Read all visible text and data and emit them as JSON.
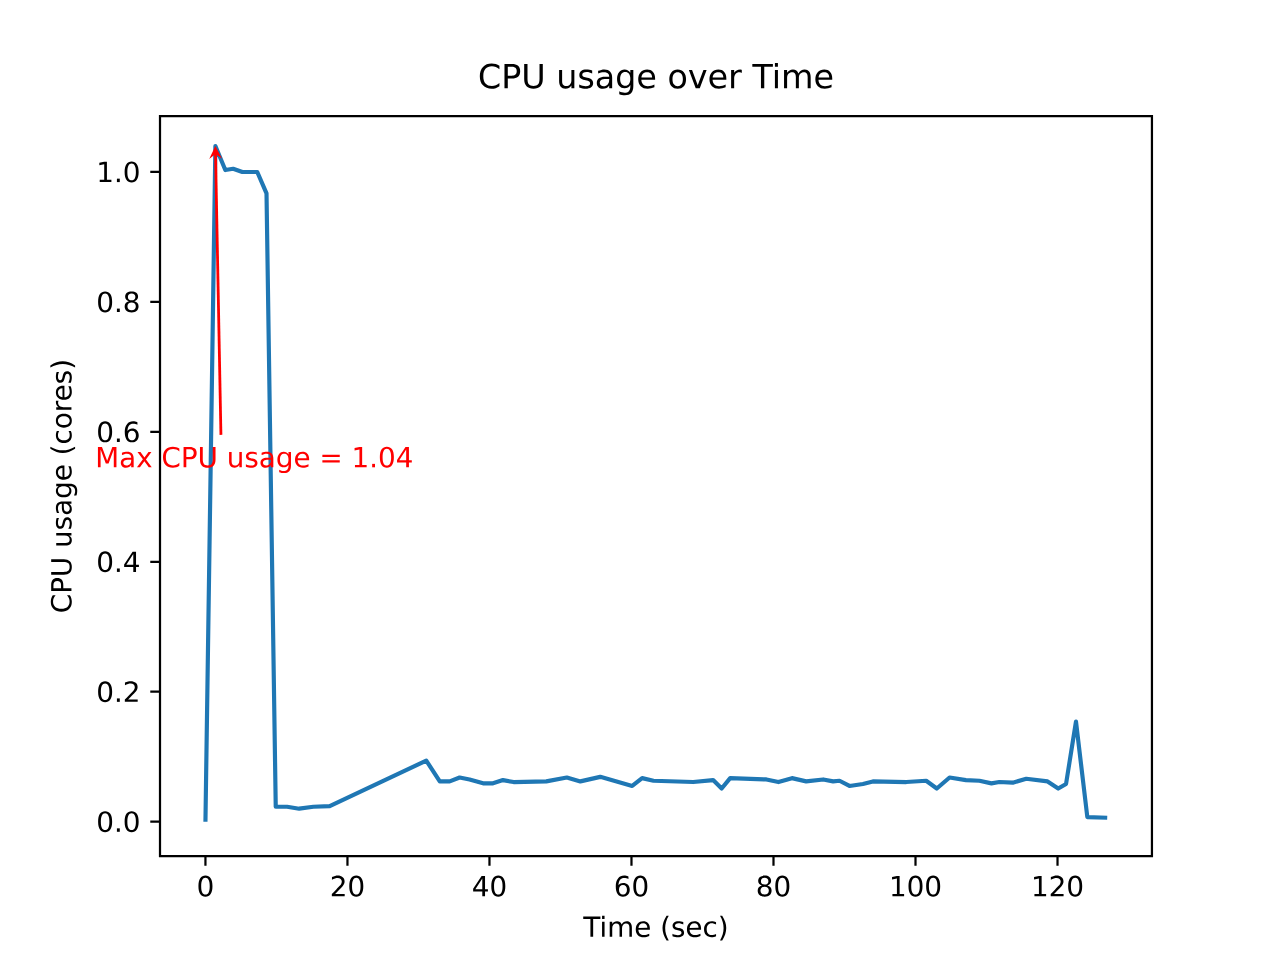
{
  "chart_data": {
    "type": "line",
    "title": "CPU usage over Time",
    "xlabel": "Time (sec)",
    "ylabel": "CPU usage (cores)",
    "x": [
      0,
      1.4,
      2.8,
      3.9,
      5.2,
      7.3,
      8.6,
      9.9,
      11.5,
      13.2,
      15.2,
      17.5,
      31.1,
      33,
      34.4,
      35.8,
      37.2,
      39.1,
      40.5,
      41.9,
      43.4,
      48,
      50.9,
      52.8,
      55.6,
      60.1,
      61.5,
      63.1,
      68.7,
      71.5,
      72.7,
      73.9,
      79,
      80.7,
      82.6,
      84.6,
      87,
      88.4,
      89.3,
      90.7,
      92.6,
      94,
      98.7,
      101.5,
      103,
      104.8,
      107.1,
      109,
      110.7,
      111.8,
      113.7,
      115.6,
      118.6,
      120.1,
      121.2,
      122.6,
      124.2,
      127
    ],
    "series": [
      {
        "color": "#1f77b4",
        "values": [
          0,
          1.04,
          1.003,
          1.005,
          1.0,
          1.0,
          0.967,
          0.023,
          0.023,
          0.02,
          0.023,
          0.024,
          0.094,
          0.062,
          0.062,
          0.068,
          0.065,
          0.059,
          0.059,
          0.064,
          0.061,
          0.062,
          0.068,
          0.062,
          0.069,
          0.055,
          0.067,
          0.063,
          0.061,
          0.064,
          0.051,
          0.067,
          0.065,
          0.061,
          0.067,
          0.062,
          0.065,
          0.062,
          0.063,
          0.055,
          0.058,
          0.062,
          0.061,
          0.063,
          0.051,
          0.068,
          0.064,
          0.063,
          0.059,
          0.061,
          0.06,
          0.066,
          0.062,
          0.051,
          0.058,
          0.154,
          0.007,
          0.006
        ]
      }
    ],
    "xlim": [
      -6.4,
      133.3
    ],
    "ylim": [
      -0.053,
      1.086
    ],
    "xticks": [
      0,
      20,
      40,
      60,
      80,
      100,
      120
    ],
    "yticks": [
      {
        "value": 0,
        "label": "0.0"
      },
      {
        "value": 0.2,
        "label": "0.2"
      },
      {
        "value": 0.4,
        "label": "0.4"
      },
      {
        "value": 0.6,
        "label": "0.6"
      },
      {
        "value": 0.8,
        "label": "0.8"
      },
      {
        "value": 1.0,
        "label": "1.0"
      }
    ],
    "annotations": [
      {
        "text": "Max CPU usage = 1.04",
        "x": 1.4,
        "y": 1.04
      }
    ]
  }
}
